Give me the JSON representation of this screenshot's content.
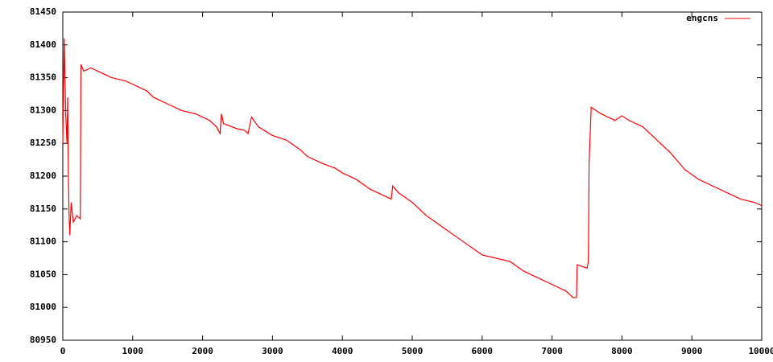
{
  "chart_data": {
    "type": "line",
    "x": [
      0,
      20,
      40,
      60,
      70,
      80,
      90,
      100,
      120,
      150,
      200,
      250,
      260,
      300,
      400,
      500,
      700,
      900,
      1000,
      1100,
      1200,
      1300,
      1400,
      1500,
      1700,
      1900,
      2000,
      2100,
      2200,
      2250,
      2270,
      2300,
      2500,
      2600,
      2650,
      2700,
      2800,
      3000,
      3200,
      3400,
      3500,
      3700,
      3900,
      4000,
      4200,
      4400,
      4600,
      4700,
      4720,
      4800,
      5000,
      5200,
      5400,
      5600,
      5800,
      6000,
      6200,
      6400,
      6600,
      6800,
      7000,
      7200,
      7300,
      7350,
      7360,
      7500,
      7520,
      7530,
      7560,
      7700,
      7900,
      8000,
      8100,
      8300,
      8500,
      8700,
      8900,
      9100,
      9300,
      9500,
      9700,
      9900,
      10000
    ],
    "series": [
      {
        "name": "engcns",
        "color": "#ff0000",
        "values": [
          81250,
          81410,
          81300,
          81250,
          81320,
          81200,
          81140,
          81110,
          81160,
          81130,
          81140,
          81135,
          81370,
          81360,
          81365,
          81360,
          81350,
          81345,
          81340,
          81335,
          81330,
          81320,
          81315,
          81310,
          81300,
          81295,
          81290,
          81285,
          81275,
          81265,
          81295,
          81280,
          81272,
          81270,
          81265,
          81290,
          81275,
          81262,
          81255,
          81240,
          81230,
          81220,
          81212,
          81205,
          81195,
          81180,
          81170,
          81165,
          81185,
          81175,
          81160,
          81140,
          81125,
          81110,
          81095,
          81080,
          81075,
          81070,
          81055,
          81045,
          81035,
          81025,
          81015,
          81015,
          81065,
          81060,
          81070,
          81220,
          81305,
          81295,
          81285,
          81292,
          81285,
          81275,
          81255,
          81235,
          81210,
          81195,
          81185,
          81175,
          81165,
          81160,
          81155
        ]
      }
    ],
    "xlim": [
      0,
      10000
    ],
    "xticks": [
      0,
      1000,
      2000,
      3000,
      4000,
      5000,
      6000,
      7000,
      8000,
      9000,
      10000
    ],
    "ylim": [
      80950,
      81450
    ],
    "yticks": [
      80950,
      81000,
      81050,
      81100,
      81150,
      81200,
      81250,
      81300,
      81350,
      81400,
      81450
    ],
    "legend": "top-right",
    "grid": false
  }
}
